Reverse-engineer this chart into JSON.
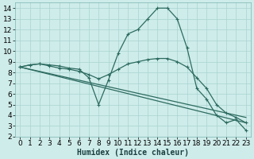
{
  "xlabel": "Humidex (Indice chaleur)",
  "background_color": "#ceecea",
  "grid_color": "#a8d4d0",
  "line_color": "#2d6b60",
  "xlim": [
    -0.5,
    23.5
  ],
  "ylim": [
    2,
    14.5
  ],
  "xtick_labels": [
    "0",
    "1",
    "2",
    "3",
    "4",
    "5",
    "6",
    "7",
    "8",
    "9",
    "10",
    "11",
    "12",
    "13",
    "14",
    "15",
    "16",
    "17",
    "18",
    "19",
    "20",
    "21",
    "22",
    "23"
  ],
  "yticks": [
    2,
    3,
    4,
    5,
    6,
    7,
    8,
    9,
    10,
    11,
    12,
    13,
    14
  ],
  "series": [
    {
      "x": [
        0,
        1,
        2,
        3,
        4,
        5,
        6,
        7,
        8,
        9,
        10,
        11,
        12,
        13,
        14,
        15,
        16,
        17,
        18,
        19,
        20,
        21,
        22,
        23
      ],
      "y": [
        8.5,
        8.7,
        8.8,
        8.7,
        8.6,
        8.4,
        8.3,
        7.5,
        5.0,
        7.3,
        9.8,
        11.6,
        12.0,
        13.0,
        14.0,
        14.0,
        13.0,
        10.3,
        6.5,
        5.5,
        4.0,
        3.3,
        3.6,
        2.6
      ],
      "marker": true
    },
    {
      "x": [
        0,
        1,
        2,
        3,
        4,
        5,
        6,
        7,
        8,
        9,
        10,
        11,
        12,
        13,
        14,
        15,
        16,
        17,
        18,
        19,
        20,
        21,
        22,
        23
      ],
      "y": [
        8.5,
        8.7,
        8.8,
        8.6,
        8.4,
        8.3,
        8.1,
        7.8,
        7.4,
        7.8,
        8.3,
        8.8,
        9.0,
        9.2,
        9.3,
        9.3,
        9.0,
        8.5,
        7.5,
        6.5,
        5.0,
        4.2,
        3.8,
        3.3
      ],
      "marker": true
    },
    {
      "x": [
        0,
        23
      ],
      "y": [
        8.5,
        3.3
      ],
      "marker": false
    },
    {
      "x": [
        0,
        23
      ],
      "y": [
        8.5,
        3.8
      ],
      "marker": false
    }
  ],
  "linewidth": 0.9,
  "markersize": 3.5,
  "font_size": 6.5,
  "xlabel_fontsize": 7
}
